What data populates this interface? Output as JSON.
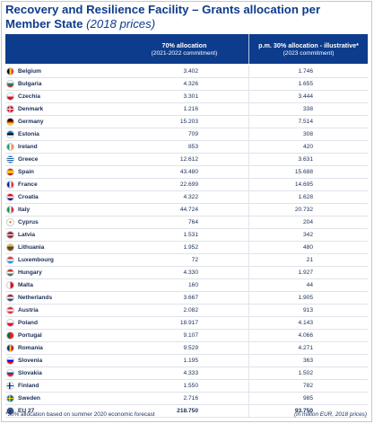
{
  "title": {
    "main": "Recovery and Resilience Facility – Grants allocation per Member State",
    "sub": "(2018 prices)"
  },
  "header": {
    "col1_line1": "70% allocation",
    "col1_line2": "(2021-2022 commitment)",
    "col2_line1": "p.m. 30% allocation - illustrative*",
    "col2_line2": "(2023 commitment)"
  },
  "rows": [
    {
      "country": "Belgium",
      "v70": "3.402",
      "v30": "1.746",
      "flag": "be"
    },
    {
      "country": "Bulgaria",
      "v70": "4.326",
      "v30": "1.655",
      "flag": "bg"
    },
    {
      "country": "Czechia",
      "v70": "3.301",
      "v30": "3.444",
      "flag": "cz"
    },
    {
      "country": "Denmark",
      "v70": "1.216",
      "v30": "338",
      "flag": "dk"
    },
    {
      "country": "Germany",
      "v70": "15.203",
      "v30": "7.514",
      "flag": "de"
    },
    {
      "country": "Estonia",
      "v70": "709",
      "v30": "308",
      "flag": "ee"
    },
    {
      "country": "Ireland",
      "v70": "853",
      "v30": "420",
      "flag": "ie"
    },
    {
      "country": "Greece",
      "v70": "12.612",
      "v30": "3.631",
      "flag": "gr"
    },
    {
      "country": "Spain",
      "v70": "43.480",
      "v30": "15.688",
      "flag": "es"
    },
    {
      "country": "France",
      "v70": "22.699",
      "v30": "14.695",
      "flag": "fr"
    },
    {
      "country": "Croatia",
      "v70": "4.322",
      "v30": "1.628",
      "flag": "hr"
    },
    {
      "country": "Italy",
      "v70": "44.724",
      "v30": "20.732",
      "flag": "it"
    },
    {
      "country": "Cyprus",
      "v70": "764",
      "v30": "204",
      "flag": "cy"
    },
    {
      "country": "Latvia",
      "v70": "1.531",
      "v30": "342",
      "flag": "lv"
    },
    {
      "country": "Lithuania",
      "v70": "1.952",
      "v30": "480",
      "flag": "lt"
    },
    {
      "country": "Luxembourg",
      "v70": "72",
      "v30": "21",
      "flag": "lu"
    },
    {
      "country": "Hungary",
      "v70": "4.330",
      "v30": "1.927",
      "flag": "hu"
    },
    {
      "country": "Malta",
      "v70": "160",
      "v30": "44",
      "flag": "mt"
    },
    {
      "country": "Netherlands",
      "v70": "3.667",
      "v30": "1.905",
      "flag": "nl"
    },
    {
      "country": "Austria",
      "v70": "2.082",
      "v30": "913",
      "flag": "at"
    },
    {
      "country": "Poland",
      "v70": "18.917",
      "v30": "4.143",
      "flag": "pl"
    },
    {
      "country": "Portugal",
      "v70": "9.107",
      "v30": "4.066",
      "flag": "pt"
    },
    {
      "country": "Romania",
      "v70": "9.529",
      "v30": "4.271",
      "flag": "ro"
    },
    {
      "country": "Slovenia",
      "v70": "1.195",
      "v30": "363",
      "flag": "si"
    },
    {
      "country": "Slovakia",
      "v70": "4.333",
      "v30": "1.502",
      "flag": "sk"
    },
    {
      "country": "Finland",
      "v70": "1.550",
      "v30": "782",
      "flag": "fi"
    },
    {
      "country": "Sweden",
      "v70": "2.716",
      "v30": "985",
      "flag": "se"
    },
    {
      "country": "EU 27",
      "v70": "218.750",
      "v30": "93.750",
      "flag": "eu",
      "total": true
    }
  ],
  "footnote": "*30% allocation based on summer 2020 economic forecast",
  "unit_note": "(in million EUR, 2018 prices)",
  "colors": {
    "brand_blue": "#0d3c8c",
    "text": "#1a2f5a",
    "row_rule": "#dfe3ea"
  }
}
